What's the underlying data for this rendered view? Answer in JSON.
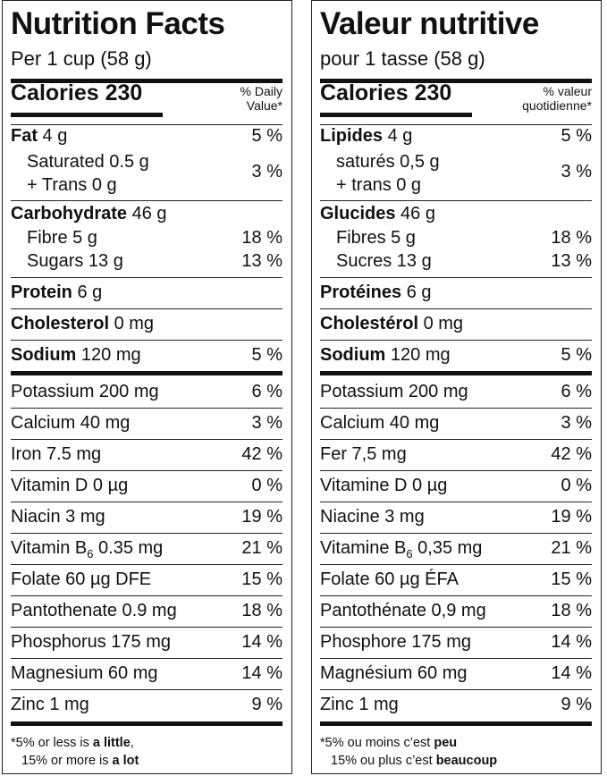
{
  "en": {
    "title": "Nutrition Facts",
    "serving": "Per 1 cup (58 g)",
    "calories_label": "Calories 230",
    "dv_line1": "% Daily",
    "dv_line2": "Value*",
    "fat_name": "Fat",
    "fat_amt": " 4 g",
    "fat_pct": "5 %",
    "sat_line1": "Saturated 0.5 g",
    "sat_line2": "+ Trans 0 g",
    "sat_pct": "3 %",
    "carb_name": "Carbohydrate",
    "carb_amt": " 46 g",
    "fibre": "Fibre 5 g",
    "fibre_pct": "18 %",
    "sugars": "Sugars 13 g",
    "sugars_pct": "13 %",
    "protein_name": "Protein",
    "protein_amt": " 6 g",
    "chol_name": "Cholesterol",
    "chol_amt": " 0 mg",
    "sodium_name": "Sodium",
    "sodium_amt": " 120 mg",
    "sodium_pct": "5 %",
    "minerals": [
      {
        "name": "Potassium 200 mg",
        "pct": "6 %"
      },
      {
        "name": "Calcium 40 mg",
        "pct": "3 %"
      },
      {
        "name": "Iron 7.5 mg",
        "pct": "42 %"
      },
      {
        "name": "Vitamin D 0 µg",
        "pct": "0 %"
      },
      {
        "name": "Niacin 3 mg",
        "pct": "19 %"
      },
      {
        "name": "Vitamin B",
        "sub": "6",
        "rest": " 0.35 mg",
        "pct": "21 %"
      },
      {
        "name": "Folate 60 µg DFE",
        "pct": "15 %"
      },
      {
        "name": "Pantothenate 0.9 mg",
        "pct": "18 %"
      },
      {
        "name": "Phosphorus 175 mg",
        "pct": "14 %"
      },
      {
        "name": "Magnesium 60 mg",
        "pct": "14 %"
      },
      {
        "name": "Zinc 1 mg",
        "pct": "9 %"
      }
    ],
    "foot1_a": "*5% or less is ",
    "foot1_b": "a little",
    "foot2_a": "15% or more is ",
    "foot2_b": "a lot"
  },
  "fr": {
    "title": "Valeur nutritive",
    "serving": "pour 1 tasse (58 g)",
    "calories_label": "Calories 230",
    "dv_line1": "% valeur",
    "dv_line2": "quotidienne*",
    "fat_name": "Lipides",
    "fat_amt": " 4 g",
    "fat_pct": "5 %",
    "sat_line1": "saturés 0,5 g",
    "sat_line2": "+ trans 0 g",
    "sat_pct": "3 %",
    "carb_name": "Glucides",
    "carb_amt": " 46 g",
    "fibre": "Fibres 5 g",
    "fibre_pct": "18 %",
    "sugars": "Sucres 13 g",
    "sugars_pct": "13 %",
    "protein_name": "Protéines",
    "protein_amt": " 6 g",
    "chol_name": "Cholestérol",
    "chol_amt": " 0 mg",
    "sodium_name": "Sodium",
    "sodium_amt": " 120 mg",
    "sodium_pct": "5 %",
    "minerals": [
      {
        "name": "Potassium 200 mg",
        "pct": "6 %"
      },
      {
        "name": "Calcium 40 mg",
        "pct": "3 %"
      },
      {
        "name": "Fer 7,5 mg",
        "pct": "42 %"
      },
      {
        "name": "Vitamine D 0 µg",
        "pct": "0 %"
      },
      {
        "name": "Niacine 3 mg",
        "pct": "19 %"
      },
      {
        "name": "Vitamine B",
        "sub": "6",
        "rest": " 0,35 mg",
        "pct": "21 %"
      },
      {
        "name": "Folate 60 µg ÉFA",
        "pct": "15 %"
      },
      {
        "name": "Pantothénate 0,9 mg",
        "pct": "18 %"
      },
      {
        "name": "Phosphore 175 mg",
        "pct": "14 %"
      },
      {
        "name": "Magnésium 60 mg",
        "pct": "14 %"
      },
      {
        "name": "Zinc 1 mg",
        "pct": "9 %"
      }
    ],
    "foot1_a": "*5% ou moins c’est ",
    "foot1_b": "peu",
    "foot2_a": "15% ou plus c’est ",
    "foot2_b": "beaucoup"
  }
}
